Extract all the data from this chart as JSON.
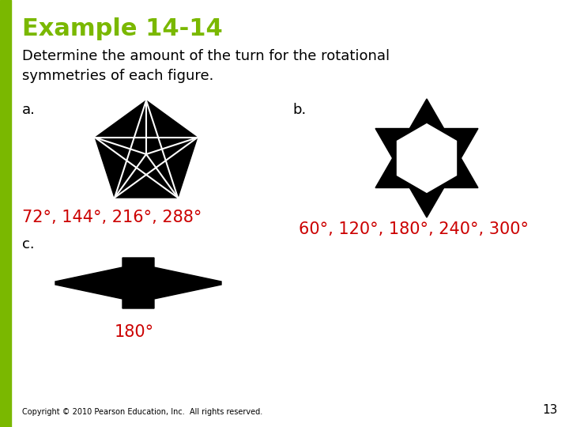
{
  "title": "Example 14-14",
  "title_color": "#7ab800",
  "title_fontsize": 22,
  "body_text": "Determine the amount of the turn for the rotational\nsymmetries of each figure.",
  "body_fontsize": 13,
  "label_a": "a.",
  "label_b": "b.",
  "label_c": "c.",
  "answer_a": "72°, 144°, 216°, 288°",
  "answer_b": "60°, 120°, 180°, 240°, 300°",
  "answer_c": "180°",
  "answer_color": "#cc0000",
  "answer_fontsize": 15,
  "copyright_text": "Copyright © 2010 Pearson Education, Inc.  All rights reserved.",
  "copyright_fontsize": 7,
  "page_number": "13",
  "bg_color": "#ffffff",
  "sidebar_color": "#7ab800",
  "label_fontsize": 13
}
